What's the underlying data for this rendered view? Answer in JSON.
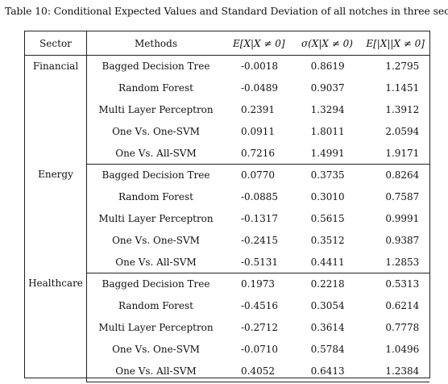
{
  "caption": "Table 10: Conditional Expected Values and Standard Deviation of all notches in three sectors",
  "headers": {
    "sector": "Sector",
    "methods": "Methods",
    "expected": "E[X|X ≠ 0]",
    "std": "σ(X|X ≠ 0)",
    "abs_expected": "E[|X||X ≠ 0]"
  },
  "groups": [
    {
      "sector": "Financial",
      "rows": [
        {
          "method": "Bagged Decision Tree",
          "e": "-0.0018",
          "s": "0.8619",
          "a": "1.2795"
        },
        {
          "method": "Random Forest",
          "e": "-0.0489",
          "s": "0.9037",
          "a": "1.1451"
        },
        {
          "method": "Multi Layer Perceptron",
          "e": "0.2391",
          "s": "1.3294",
          "a": "1.3912"
        },
        {
          "method": "One Vs. One-SVM",
          "e": "0.0911",
          "s": "1.8011",
          "a": "2.0594"
        },
        {
          "method": "One Vs. All-SVM",
          "e": "0.7216",
          "s": "1.4991",
          "a": "1.9171"
        }
      ]
    },
    {
      "sector": "Energy",
      "rows": [
        {
          "method": "Bagged Decision Tree",
          "e": "0.0770",
          "s": "0.3735",
          "a": "0.8264"
        },
        {
          "method": "Random Forest",
          "e": "-0.0885",
          "s": "0.3010",
          "a": "0.7587"
        },
        {
          "method": "Multi Layer Perceptron",
          "e": "-0.1317",
          "s": "0.5615",
          "a": "0.9991"
        },
        {
          "method": "One Vs. One-SVM",
          "e": "-0.2415",
          "s": "0.3512",
          "a": "0.9387"
        },
        {
          "method": "One Vs. All-SVM",
          "e": "-0.5131",
          "s": "0.4411",
          "a": "1.2853"
        }
      ]
    },
    {
      "sector": "Healthcare",
      "rows": [
        {
          "method": "Bagged Decision Tree",
          "e": "0.1973",
          "s": "0.2218",
          "a": "0.5313"
        },
        {
          "method": "Random Forest",
          "e": "-0.4516",
          "s": "0.3054",
          "a": "0.6214"
        },
        {
          "method": "Multi Layer Perceptron",
          "e": "-0.2712",
          "s": "0.3614",
          "a": "0.7778"
        },
        {
          "method": "One Vs. One-SVM",
          "e": "-0.0710",
          "s": "0.5784",
          "a": "1.0496"
        },
        {
          "method": "One Vs. All-SVM",
          "e": "0.4052",
          "s": "0.6413",
          "a": "1.2384"
        }
      ]
    }
  ]
}
